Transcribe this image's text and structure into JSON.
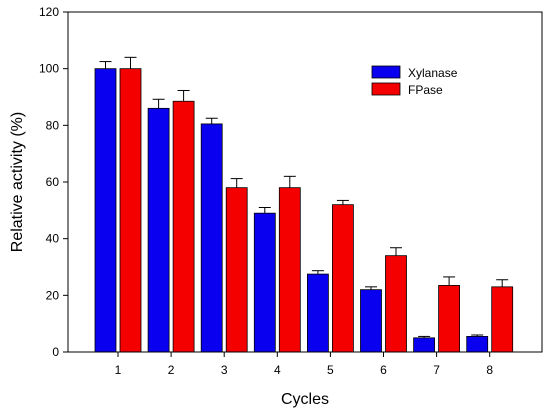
{
  "chart_data": {
    "type": "bar",
    "categories": [
      "1",
      "2",
      "3",
      "4",
      "5",
      "6",
      "7",
      "8"
    ],
    "series": [
      {
        "name": "Xylanase",
        "color": "#0a00f0",
        "values": [
          100,
          86,
          80.5,
          49,
          27.5,
          22,
          5,
          5.5
        ],
        "errors": [
          2.5,
          3.2,
          2.0,
          2.0,
          1.2,
          1.0,
          0.5,
          0.5
        ]
      },
      {
        "name": "FPase",
        "color": "#f50000",
        "values": [
          100,
          88.5,
          58,
          58,
          52,
          34,
          23.5,
          23
        ],
        "errors": [
          4.0,
          3.8,
          3.2,
          4.0,
          1.5,
          2.8,
          3.0,
          2.5
        ]
      }
    ],
    "xlabel": "Cycles",
    "ylabel": "Relative activity (%)",
    "ylim": [
      0,
      120
    ],
    "yticks": [
      "0",
      "20",
      "40",
      "60",
      "80",
      "100",
      "120"
    ],
    "grid": false,
    "legend_position": "top-right"
  }
}
